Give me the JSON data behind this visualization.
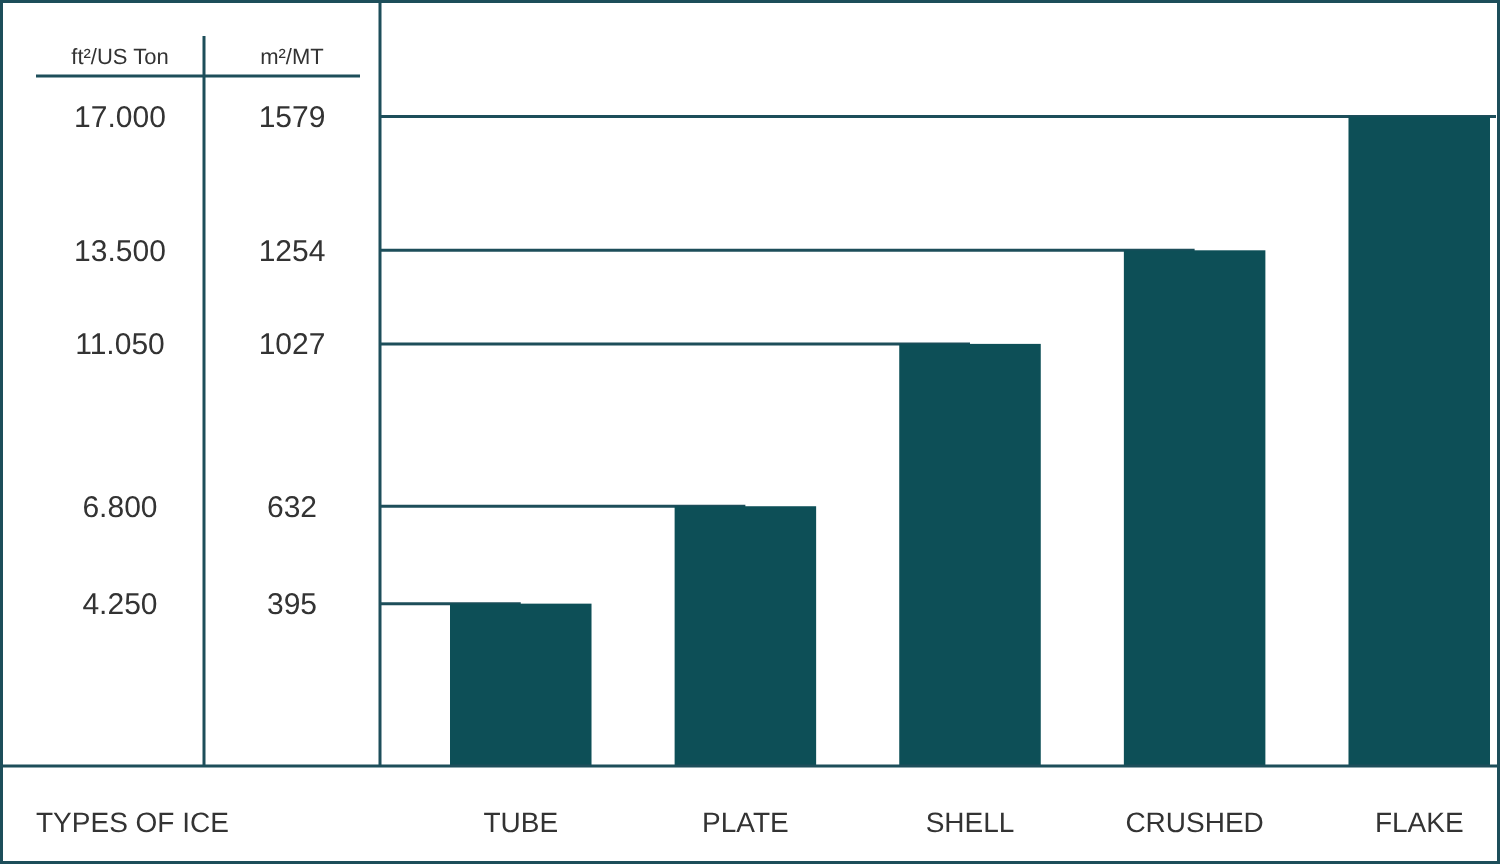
{
  "chart_data": {
    "type": "bar",
    "xlabel": "TYPES OF ICE",
    "ylabel": "ft²/US Ton",
    "y2label": "m²/MT",
    "categories": [
      "TUBE",
      "PLATE",
      "SHELL",
      "CRUSHED",
      "FLAKE"
    ],
    "values": [
      4250,
      6800,
      11050,
      13500,
      17000
    ],
    "color": "#0d4f57",
    "ylim": [
      0,
      20000
    ],
    "yticks": [
      {
        "value": 4250,
        "label": "4.250"
      },
      {
        "value": 6800,
        "label": "6.800"
      },
      {
        "value": 11050,
        "label": "11.050"
      },
      {
        "value": 13500,
        "label": "13.500"
      },
      {
        "value": 17000,
        "label": "17.000"
      }
    ],
    "y2lim": [
      0,
      1858
    ],
    "y2ticks": [
      395,
      632,
      1027,
      1254,
      1579
    ],
    "ref_lines": [
      {
        "axis": "y",
        "value": 4250,
        "color": "#1d4e5a"
      },
      {
        "axis": "y",
        "value": 6800,
        "color": "#1d4e5a"
      },
      {
        "axis": "y",
        "value": 11050,
        "color": "#1d4e5a"
      },
      {
        "axis": "y",
        "value": 13500,
        "color": "#1d4e5a"
      },
      {
        "axis": "y",
        "value": 17000,
        "color": "#1d4e5a"
      }
    ]
  }
}
